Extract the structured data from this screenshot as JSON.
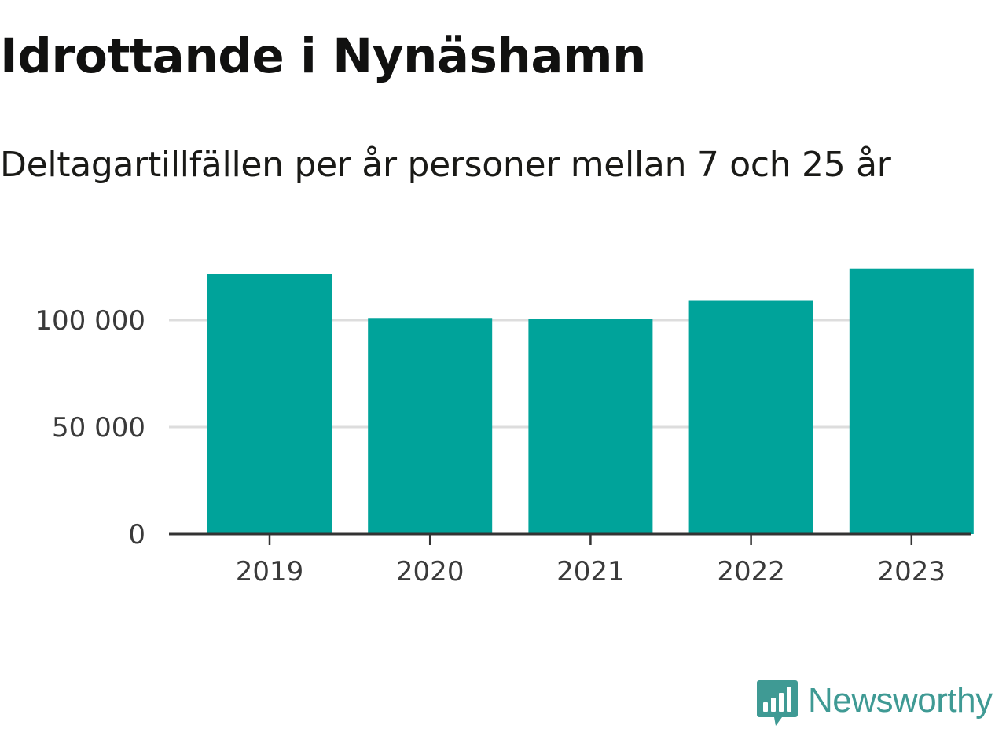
{
  "title": "Idrottande i Nynäshamn",
  "subtitle": "Deltagartillfällen per år personer mellan 7 och 25 år",
  "brand": {
    "name": "Newsworthy",
    "icon": "newsworthy-logo-icon",
    "color": "#3f9a94"
  },
  "colors": {
    "bar": "#00a39a",
    "grid": "#dddddd",
    "axis": "#333333",
    "tick_text": "#3a3a3a"
  },
  "chart_data": {
    "type": "bar",
    "title": "Idrottande i Nynäshamn",
    "subtitle": "Deltagartillfällen per år personer mellan 7 och 25 år",
    "categories": [
      "2019",
      "2020",
      "2021",
      "2022",
      "2023"
    ],
    "values": [
      121500,
      101000,
      100500,
      109000,
      124000
    ],
    "ylim": [
      0,
      135000
    ],
    "yticks": [
      0,
      50000,
      100000
    ],
    "ytick_labels": [
      "0",
      "50 000",
      "100 000"
    ],
    "xlabel": "",
    "ylabel": "",
    "grid": true,
    "legend": "none"
  }
}
